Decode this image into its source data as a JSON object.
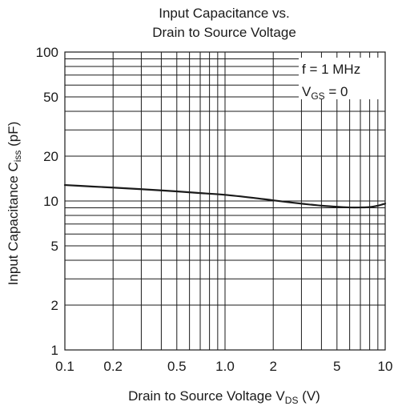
{
  "chart_data": {
    "type": "line",
    "title_line1": "Input Capacitance vs.",
    "title_line2": "Drain to Source Voltage",
    "xlabel": {
      "main": "Drain to Source Voltage  V",
      "sub": "DS",
      "suffix": "  (V)"
    },
    "ylabel": {
      "main": "Input Capacitance  C",
      "sub": "iss",
      "suffix": "  (pF)"
    },
    "x_scale": "log",
    "y_scale": "log",
    "xlim": [
      0.1,
      10
    ],
    "ylim": [
      1,
      100
    ],
    "grid": true,
    "x_ticks": [
      {
        "value": 0.1,
        "label": "0.1"
      },
      {
        "value": 0.2,
        "label": "0.2"
      },
      {
        "value": 0.5,
        "label": "0.5"
      },
      {
        "value": 1,
        "label": "1.0"
      },
      {
        "value": 2,
        "label": "2"
      },
      {
        "value": 5,
        "label": "5"
      },
      {
        "value": 10,
        "label": "10"
      }
    ],
    "y_ticks": [
      {
        "value": 1,
        "label": "1"
      },
      {
        "value": 2,
        "label": "2"
      },
      {
        "value": 5,
        "label": "5"
      },
      {
        "value": 10,
        "label": "10"
      },
      {
        "value": 20,
        "label": "20"
      },
      {
        "value": 50,
        "label": "50"
      },
      {
        "value": 100,
        "label": "100"
      }
    ],
    "annotation": {
      "line1": "f = 1 MHz",
      "line2_main": "V",
      "line2_sub": "GS",
      "line2_suffix": " = 0"
    },
    "series": [
      {
        "x": [
          0.1,
          0.15,
          0.2,
          0.3,
          0.5,
          0.7,
          1.0,
          1.5,
          2.0,
          3.0,
          4.0,
          5.0,
          6.0,
          7.0,
          8.0,
          9.0,
          10.0
        ],
        "values": [
          12.8,
          12.5,
          12.3,
          12.0,
          11.6,
          11.3,
          11.0,
          10.5,
          10.1,
          9.6,
          9.3,
          9.15,
          9.05,
          9.05,
          9.1,
          9.3,
          9.6
        ]
      }
    ],
    "colors": {
      "line": "#1a1a1a",
      "grid": "#1a1a1a",
      "background": "#ffffff"
    }
  }
}
